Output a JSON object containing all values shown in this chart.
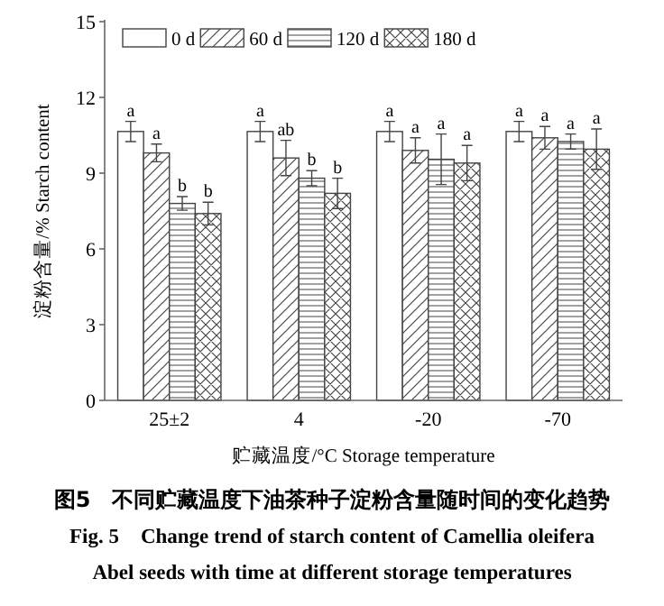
{
  "chart_data": {
    "type": "bar",
    "xlabel": "贮藏温度/°C Storage temperature",
    "ylabel": "淀粉含量/% Starch content",
    "categories": [
      "25±2",
      "4",
      "-20",
      "-70"
    ],
    "series": [
      {
        "name": "0 d",
        "color": "#ffffff",
        "values": [
          10.65,
          10.65,
          10.65,
          10.65
        ],
        "errors": [
          0.4,
          0.4,
          0.4,
          0.4
        ]
      },
      {
        "name": "60 d",
        "color": "#444444",
        "values": [
          9.8,
          9.6,
          9.9,
          10.4
        ],
        "errors": [
          0.35,
          0.7,
          0.5,
          0.45
        ]
      },
      {
        "name": "120 d",
        "color": "#444444",
        "values": [
          7.8,
          8.8,
          9.55,
          10.25
        ],
        "errors": [
          0.27,
          0.3,
          1.0,
          0.3
        ]
      },
      {
        "name": "180 d",
        "color": "#444444",
        "values": [
          7.4,
          8.2,
          9.4,
          9.95
        ],
        "errors": [
          0.45,
          0.6,
          0.7,
          0.8
        ]
      }
    ],
    "ylim": [
      0,
      15
    ],
    "yticks": [
      0,
      3,
      6,
      9,
      12,
      15
    ],
    "grid": false,
    "legend": "top",
    "annotations": [
      "a",
      "a",
      "b",
      "b",
      "a",
      "ab",
      "b",
      "b",
      "a",
      "a",
      "a",
      "a",
      "a",
      "a",
      "a",
      "a",
      "图5　不同贮藏温度下油茶种子淀粉含量随时间的变化趋势",
      "Fig. 5　Change trend of starch content of Camellia oleifera",
      "Abel seeds with time at different storage temperatures"
    ]
  }
}
